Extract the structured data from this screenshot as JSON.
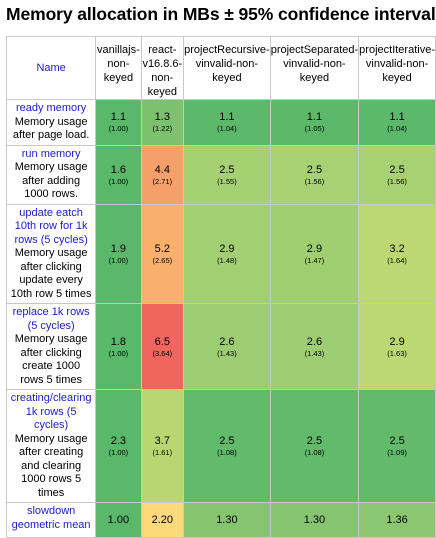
{
  "title": "Memory allocation in MBs ± 95% confidence interval",
  "header": {
    "name_label": "Name",
    "columns": [
      "vanillajs-non-keyed",
      "react-v16.8.6-non-keyed",
      "projectRecursive-vinvalid-non-keyed",
      "projectSeparated-vinvalid-non-keyed",
      "projectIterative-vinvalid-non-keyed"
    ]
  },
  "rows": [
    {
      "name": "ready memory",
      "desc": "Memory usage after page load.",
      "cells": [
        {
          "value": "1.1",
          "factor": "(1.00)",
          "color": "#5ab86a"
        },
        {
          "value": "1.3",
          "factor": "(1.22)",
          "color": "#7dc06e"
        },
        {
          "value": "1.1",
          "factor": "(1.04)",
          "color": "#5cb86a"
        },
        {
          "value": "1.1",
          "factor": "(1.05)",
          "color": "#5db86a"
        },
        {
          "value": "1.1",
          "factor": "(1.04)",
          "color": "#5cb86a"
        }
      ]
    },
    {
      "name": "run memory",
      "desc": "Memory usage after adding 1000 rows.",
      "cells": [
        {
          "value": "1.6",
          "factor": "(1.00)",
          "color": "#5ab86a"
        },
        {
          "value": "4.4",
          "factor": "(2.71)",
          "color": "#f5a06a"
        },
        {
          "value": "2.5",
          "factor": "(1.55)",
          "color": "#a6d173"
        },
        {
          "value": "2.5",
          "factor": "(1.56)",
          "color": "#a7d173"
        },
        {
          "value": "2.5",
          "factor": "(1.56)",
          "color": "#a7d173"
        }
      ]
    },
    {
      "name": "update eatch 10th row for 1k rows (5 cycles)",
      "desc": "Memory usage after clicking update every 10th row 5 times",
      "cells": [
        {
          "value": "1.9",
          "factor": "(1.00)",
          "color": "#5ab86a"
        },
        {
          "value": "5.2",
          "factor": "(2.65)",
          "color": "#f8b06c"
        },
        {
          "value": "2.9",
          "factor": "(1.48)",
          "color": "#a2cf72"
        },
        {
          "value": "2.9",
          "factor": "(1.47)",
          "color": "#a0cf72"
        },
        {
          "value": "3.2",
          "factor": "(1.64)",
          "color": "#bcd872"
        }
      ]
    },
    {
      "name": "replace 1k rows (5 cycles)",
      "desc": "Memory usage after clicking create 1000 rows 5 times",
      "cells": [
        {
          "value": "1.8",
          "factor": "(1.00)",
          "color": "#5ab86a"
        },
        {
          "value": "6.5",
          "factor": "(3.64)",
          "color": "#f0655e"
        },
        {
          "value": "2.6",
          "factor": "(1.43)",
          "color": "#9ccd72"
        },
        {
          "value": "2.6",
          "factor": "(1.43)",
          "color": "#9ccd72"
        },
        {
          "value": "2.9",
          "factor": "(1.63)",
          "color": "#bbd872"
        }
      ]
    },
    {
      "name": "creating/clearing 1k rows (5 cycles)",
      "desc": "Memory usage after creating and clearing 1000 rows 5 times",
      "cells": [
        {
          "value": "2.3",
          "factor": "(1.00)",
          "color": "#5ab86a"
        },
        {
          "value": "3.7",
          "factor": "(1.61)",
          "color": "#b9d771"
        },
        {
          "value": "2.5",
          "factor": "(1.08)",
          "color": "#62ba6b"
        },
        {
          "value": "2.5",
          "factor": "(1.08)",
          "color": "#62ba6b"
        },
        {
          "value": "2.5",
          "factor": "(1.09)",
          "color": "#64ba6b"
        }
      ]
    }
  ],
  "geo": {
    "name": "slowdown geometric mean",
    "cells": [
      {
        "value": "1.00",
        "color": "#5ab86a"
      },
      {
        "value": "2.20",
        "color": "#fdd97b"
      },
      {
        "value": "1.30",
        "color": "#86c46f"
      },
      {
        "value": "1.30",
        "color": "#86c46f"
      },
      {
        "value": "1.36",
        "color": "#8dc670"
      }
    ]
  }
}
